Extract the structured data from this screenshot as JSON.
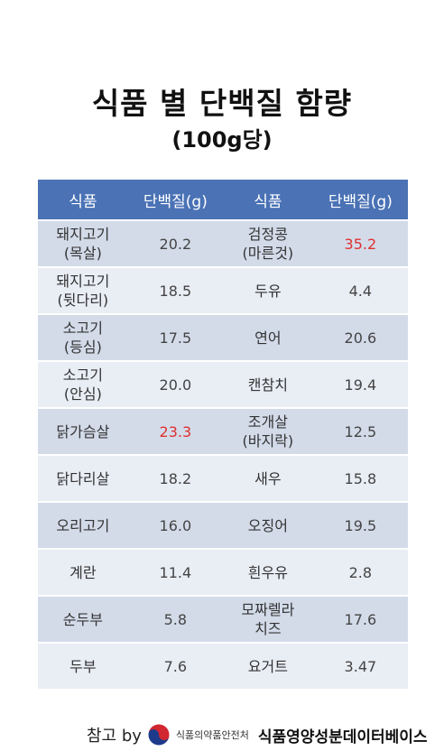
{
  "title": "식품 별 단백질 함량",
  "subtitle": "(100g당)",
  "table": {
    "headers": [
      "식품",
      "단백질(g)",
      "식품",
      "단백질(g)"
    ],
    "rows": [
      {
        "food1": {
          "l1": "돼지고기",
          "l2": "(목살)"
        },
        "value1": "20.2",
        "food2": {
          "l1": "검정콩",
          "l2": "(마른것)"
        },
        "value2": "35.2",
        "highlight": "value2"
      },
      {
        "food1": {
          "l1": "돼지고기",
          "l2": "(뒷다리)"
        },
        "value1": "18.5",
        "food2": {
          "l1": "두유",
          "l2": ""
        },
        "value2": "4.4",
        "highlight": ""
      },
      {
        "food1": {
          "l1": "소고기",
          "l2": "(등심)"
        },
        "value1": "17.5",
        "food2": {
          "l1": "연어",
          "l2": ""
        },
        "value2": "20.6",
        "highlight": ""
      },
      {
        "food1": {
          "l1": "소고기",
          "l2": "(안심)"
        },
        "value1": "20.0",
        "food2": {
          "l1": "캔참치",
          "l2": ""
        },
        "value2": "19.4",
        "highlight": ""
      },
      {
        "food1": {
          "l1": "닭가슴살",
          "l2": ""
        },
        "value1": "23.3",
        "food2": {
          "l1": "조개살",
          "l2": "(바지락)"
        },
        "value2": "12.5",
        "highlight": "value1"
      },
      {
        "food1": {
          "l1": "닭다리살",
          "l2": ""
        },
        "value1": "18.2",
        "food2": {
          "l1": "새우",
          "l2": ""
        },
        "value2": "15.8",
        "highlight": ""
      },
      {
        "food1": {
          "l1": "오리고기",
          "l2": ""
        },
        "value1": "16.0",
        "food2": {
          "l1": "오징어",
          "l2": ""
        },
        "value2": "19.5",
        "highlight": ""
      },
      {
        "food1": {
          "l1": "계란",
          "l2": ""
        },
        "value1": "11.4",
        "food2": {
          "l1": "흰우유",
          "l2": ""
        },
        "value2": "2.8",
        "highlight": ""
      },
      {
        "food1": {
          "l1": "순두부",
          "l2": ""
        },
        "value1": "5.8",
        "food2": {
          "l1": "모짜렐라",
          "l2": "치즈"
        },
        "value2": "17.6",
        "highlight": ""
      },
      {
        "food1": {
          "l1": "두부",
          "l2": ""
        },
        "value1": "7.6",
        "food2": {
          "l1": "요거트",
          "l2": ""
        },
        "value2": "3.47",
        "highlight": ""
      }
    ]
  },
  "footer": {
    "reference": "참고 by",
    "logo_icon": "government-taegeuk-logo-icon",
    "agency": "식품의약품안전처",
    "database": "식품영양성분데이터베이스"
  },
  "colors": {
    "header_bg": "#4a72b5",
    "row_dark": "#d3dbe9",
    "row_light": "#e9edf4",
    "highlight": "#e03030"
  }
}
